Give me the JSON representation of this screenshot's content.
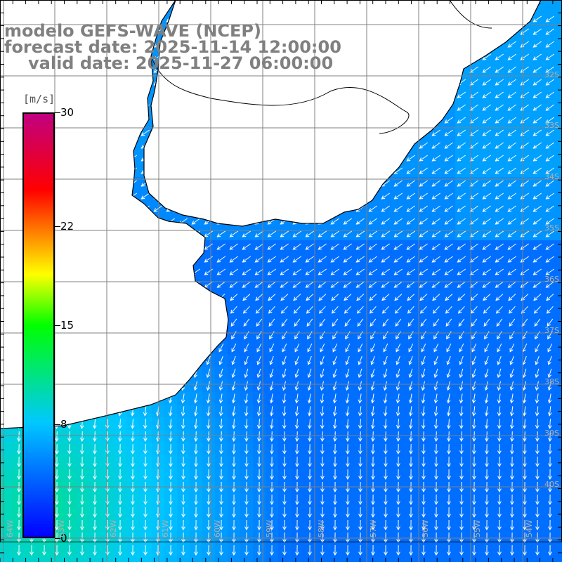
{
  "title": {
    "model": "modelo GEFS-WAVE (NCEP)",
    "forecast": "forecast date: 2025-11-14 12:00:00",
    "valid": "valid date: 2025-11-27 06:00:00"
  },
  "colorbar": {
    "unit": "[m/s]",
    "ticks": [
      "30",
      "22",
      "15",
      "8",
      "0"
    ],
    "tick_values": [
      30,
      22,
      15,
      8,
      0
    ],
    "min": 0,
    "max": 30,
    "colors": [
      "#0000ff",
      "#00c8ff",
      "#00ff00",
      "#ffff00",
      "#ff8000",
      "#ff0000",
      "#c00080"
    ]
  },
  "grid": {
    "lat_labels": [
      "32S",
      "33S",
      "34S",
      "35S",
      "36S",
      "37S",
      "38S",
      "39S",
      "40S"
    ],
    "lon_labels": [
      "64W",
      "63W",
      "62W",
      "61W",
      "60W",
      "59W",
      "58W",
      "57W",
      "56W",
      "55W",
      "54W"
    ],
    "color": "#808080"
  },
  "field": {
    "variable": "10 m wind speed and direction",
    "units": "m/s",
    "north_speed": 6,
    "central_speed": 5,
    "southwest_speed": 11,
    "direction_north": "from northeast",
    "direction_south": "from north",
    "land_color": "#ffffff",
    "coastline_color": "#000000",
    "arrow_color": "#ffffff"
  }
}
